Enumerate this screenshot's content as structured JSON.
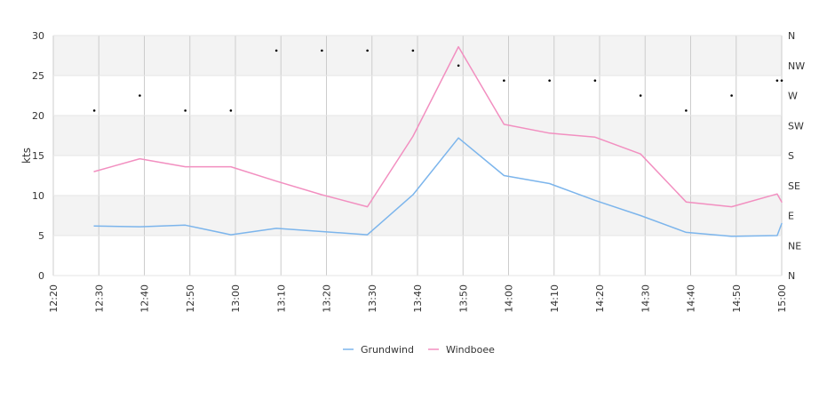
{
  "chart_data": {
    "type": "line",
    "title": "",
    "xlabel": "",
    "ylabel": "kts",
    "ylim": [
      0,
      30
    ],
    "y_ticks": [
      "0",
      "5",
      "10",
      "15",
      "20",
      "25",
      "30"
    ],
    "direction_ticks": [
      "N",
      "NE",
      "E",
      "SE",
      "S",
      "SW",
      "W",
      "NW",
      "N"
    ],
    "grid": true,
    "legend_position": "bottom",
    "x_ticks": [
      "12:20",
      "12:30",
      "12:40",
      "12:50",
      "13:00",
      "13:10",
      "13:20",
      "13:30",
      "13:40",
      "13:50",
      "14:00",
      "14:10",
      "14:20",
      "14:30",
      "14:40",
      "14:50",
      "15:00"
    ],
    "series": [
      {
        "name": "Grundwind",
        "color": "#7cb5ec",
        "x": [
          "12:29",
          "12:39",
          "12:49",
          "12:59",
          "13:09",
          "13:19",
          "13:29",
          "13:39",
          "13:49",
          "13:59",
          "14:09",
          "14:19",
          "14:29",
          "14:39",
          "14:49",
          "14:59",
          "15:00"
        ],
        "values": [
          6.2,
          6.1,
          6.3,
          5.1,
          5.9,
          5.5,
          5.1,
          10.1,
          17.2,
          12.5,
          11.5,
          9.4,
          7.5,
          5.4,
          4.9,
          5.0,
          6.5
        ]
      },
      {
        "name": "Windboee",
        "color": "#f28fc0",
        "x": [
          "12:29",
          "12:39",
          "12:49",
          "12:59",
          "13:09",
          "13:19",
          "13:29",
          "13:39",
          "13:49",
          "13:59",
          "14:09",
          "14:19",
          "14:29",
          "14:39",
          "14:49",
          "14:59",
          "15:00"
        ],
        "values": [
          13.0,
          14.6,
          13.6,
          13.6,
          11.8,
          10.1,
          8.6,
          17.4,
          28.6,
          18.9,
          17.8,
          17.3,
          15.2,
          9.2,
          8.6,
          10.2,
          9.2
        ]
      }
    ],
    "direction_series": {
      "unit": "degrees",
      "x": [
        "12:29",
        "12:39",
        "12:49",
        "12:59",
        "13:09",
        "13:19",
        "13:29",
        "13:39",
        "13:49",
        "13:59",
        "14:09",
        "14:19",
        "14:29",
        "14:39",
        "14:49",
        "14:59",
        "15:00"
      ],
      "values": [
        247.5,
        270,
        247.5,
        247.5,
        337.5,
        337.5,
        337.5,
        337.5,
        315,
        292.5,
        292.5,
        292.5,
        270,
        247.5,
        270,
        292.5,
        292.5
      ]
    }
  }
}
